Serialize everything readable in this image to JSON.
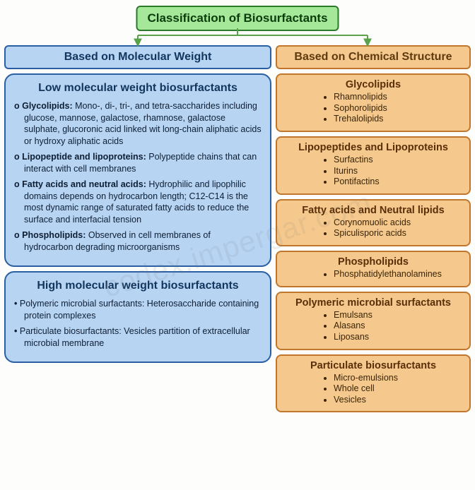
{
  "colors": {
    "root_bg": "#a6e89a",
    "root_border": "#2a7a2a",
    "blue_bg": "#b7d4f3",
    "blue_border": "#2a5fa3",
    "orange_bg": "#f5c98d",
    "orange_border": "#c0762d",
    "page_bg": "#fdfdfb",
    "connector": "#5aa24a"
  },
  "watermark": "codex.impergar.com",
  "root_title": "Classification of Biosurfactants",
  "left_header": "Based on Molecular Weight",
  "right_header": "Based on Chemical Structure",
  "low_mw": {
    "title": "Low molecular weight biosurfactants",
    "items": [
      {
        "term": "Glycolipids:",
        "text": " Mono-, di-, tri-, and tetra-saccharides including glucose, mannose, galactose, rhamnose, galactose sulphate, glucoronic acid linked wit long-chain aliphatic acids or hydroxy aliphatic acids"
      },
      {
        "term": "Lipopeptide and lipoproteins:",
        "text": " Polypeptide chains that can interact with cell membranes"
      },
      {
        "term": "Fatty acids and neutral acids:",
        "text": " Hydrophilic and lipophilic domains depends on hydrocarbon length; C12-C14 is the most dynamic range of saturated fatty acids to reduce the surface and interfacial tension"
      },
      {
        "term": "Phospholipids:",
        "text": " Observed in cell membranes of hydrocarbon degrading microorganisms"
      }
    ]
  },
  "high_mw": {
    "title": "High molecular weight biosurfactants",
    "items": [
      {
        "term": "Polymeric microbial surfactants:",
        "text": " Heterosaccharide containing protein complexes"
      },
      {
        "term": "Particulate biosurfactants:",
        "text": " Vesicles partition of extracellular microbial membrane"
      }
    ]
  },
  "categories": [
    {
      "title": "Glycolipids",
      "items": [
        "Rhamnolipids",
        "Sophorolipids",
        "Trehalolipids"
      ]
    },
    {
      "title": "Lipopeptides and Lipoproteins",
      "items": [
        "Surfactins",
        "Iturins",
        "Pontifactins"
      ]
    },
    {
      "title": "Fatty acids and Neutral lipids",
      "items": [
        "Corynomuolic acids",
        "Spiculisporic acids"
      ]
    },
    {
      "title": "Phospholipids",
      "items": [
        "Phosphatidylethanolamines"
      ]
    },
    {
      "title": "Polymeric microbial surfactants",
      "items": [
        "Emulsans",
        "Alasans",
        "Liposans"
      ]
    },
    {
      "title": "Particulate biosurfactants",
      "items": [
        "Micro-emulsions",
        "Whole cell",
        "Vesicles"
      ]
    }
  ]
}
